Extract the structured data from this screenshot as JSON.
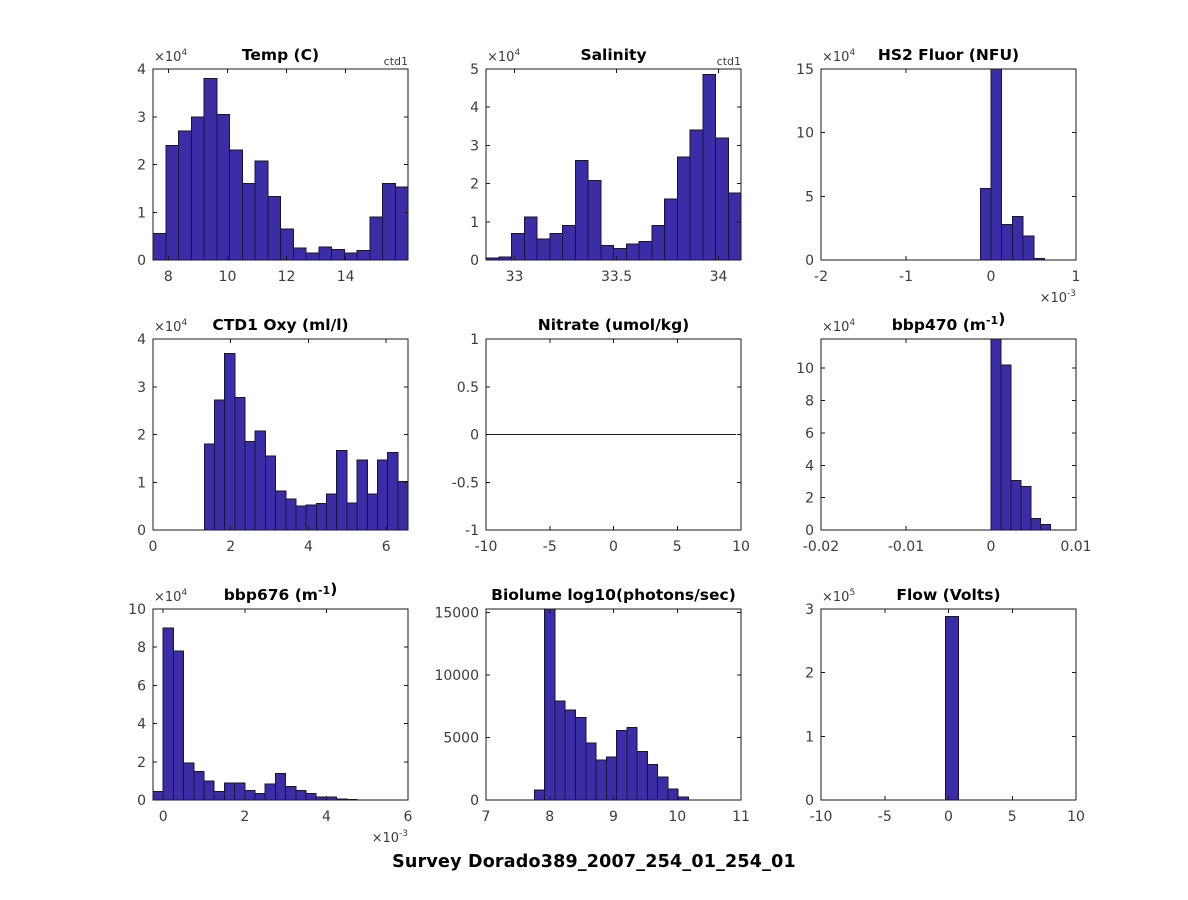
{
  "figure_title": "Survey Dorado389_2007_254_01_254_01",
  "colors": {
    "bar_fill": "#3B2DA5",
    "bar_edge": "#17123F",
    "axis": "#1a1a1a",
    "tick_text": "#3c3c3c",
    "title_text": "#000000",
    "background": "#ffffff"
  },
  "chart_data": [
    {
      "id": "temp",
      "type": "bar",
      "title": "Temp (C)",
      "corner_label": "ctd1",
      "y_exponent": 4,
      "xlim": [
        7.48,
        16.11
      ],
      "ylim": [
        0,
        4
      ],
      "xticks": [
        8,
        10,
        12,
        14
      ],
      "xtick_labels": [
        "8",
        "10",
        "12",
        "14"
      ],
      "yticks": [
        0,
        1,
        2,
        3,
        4
      ],
      "ytick_labels": [
        "0",
        "1",
        "2",
        "3",
        "4"
      ],
      "bin_start": 7.48,
      "bin_width": 0.4315,
      "heights": [
        0.55,
        2.4,
        2.7,
        3.0,
        3.8,
        3.05,
        2.3,
        1.6,
        2.07,
        1.33,
        0.65,
        0.25,
        0.15,
        0.27,
        0.22,
        0.15,
        0.2,
        0.9,
        1.6,
        1.53
      ],
      "y_units": "counts x10^4"
    },
    {
      "id": "salinity",
      "type": "bar",
      "title": "Salinity",
      "corner_label": "ctd1",
      "y_exponent": 4,
      "xlim": [
        32.86,
        34.11
      ],
      "ylim": [
        0,
        5
      ],
      "xticks": [
        33,
        33.5,
        34
      ],
      "xtick_labels": [
        "33",
        "33.5",
        "34"
      ],
      "yticks": [
        0,
        1,
        2,
        3,
        4,
        5
      ],
      "ytick_labels": [
        "0",
        "1",
        "2",
        "3",
        "4",
        "5"
      ],
      "bin_start": 32.86,
      "bin_width": 0.0625,
      "heights": [
        0.05,
        0.08,
        0.7,
        1.13,
        0.55,
        0.7,
        0.9,
        2.6,
        2.08,
        0.38,
        0.3,
        0.42,
        0.48,
        0.9,
        1.6,
        2.7,
        3.4,
        4.85,
        3.2,
        1.75
      ],
      "y_units": "counts x10^4"
    },
    {
      "id": "hs2-fluor",
      "type": "bar",
      "title": "HS2 Fluor (NFU)",
      "y_exponent": 4,
      "x_exponent": -3,
      "xlim": [
        -2,
        1
      ],
      "ylim": [
        0,
        15
      ],
      "xticks": [
        -2,
        -1,
        0,
        1
      ],
      "xtick_labels": [
        "-2",
        "-1",
        "0",
        "1"
      ],
      "yticks": [
        0,
        5,
        10,
        15
      ],
      "ytick_labels": [
        "0",
        "5",
        "10",
        "15"
      ],
      "bin_start": -0.126,
      "bin_width": 0.126,
      "heights": [
        5.6,
        15,
        2.8,
        3.4,
        1.9,
        0.12
      ],
      "y_units": "counts x10^4",
      "x_units": "NFU x10^-3"
    },
    {
      "id": "ctd1-oxy",
      "type": "bar",
      "title": "CTD1 Oxy (ml/l)",
      "y_exponent": 4,
      "xlim": [
        0,
        6.56
      ],
      "ylim": [
        0,
        4
      ],
      "xticks": [
        0,
        2,
        4,
        6
      ],
      "xtick_labels": [
        "0",
        "2",
        "4",
        "6"
      ],
      "yticks": [
        0,
        1,
        2,
        3,
        4
      ],
      "ytick_labels": [
        "0",
        "1",
        "2",
        "3",
        "4"
      ],
      "bin_start": 1.32,
      "bin_width": 0.262,
      "heights": [
        1.8,
        2.72,
        3.7,
        2.77,
        1.85,
        2.07,
        1.55,
        0.82,
        0.65,
        0.5,
        0.52,
        0.55,
        0.75,
        1.67,
        0.57,
        1.47,
        0.75,
        1.47,
        1.62,
        1.02
      ],
      "y_units": "counts x10^4"
    },
    {
      "id": "nitrate",
      "type": "line",
      "title": "Nitrate (umol/kg)",
      "xlim": [
        -10,
        10
      ],
      "ylim": [
        -1,
        1
      ],
      "xticks": [
        -10,
        -5,
        0,
        5,
        10
      ],
      "xtick_labels": [
        "-10",
        "-5",
        "0",
        "5",
        "10"
      ],
      "yticks": [
        -1,
        -0.5,
        0,
        0.5,
        1
      ],
      "ytick_labels": [
        "-1",
        "-0.5",
        "0",
        "0.5",
        "1"
      ],
      "line_points": [
        [
          -10,
          0
        ],
        [
          9.6,
          0
        ]
      ]
    },
    {
      "id": "bbp470",
      "type": "bar",
      "title": "bbp470 (m⁻¹)",
      "title_parts": [
        {
          "t": "bbp470 (m"
        },
        {
          "t": "-1",
          "sup": true
        },
        {
          "t": ")"
        }
      ],
      "y_exponent": 4,
      "xlim": [
        -0.02,
        0.01
      ],
      "ylim": [
        0,
        11.8
      ],
      "xticks": [
        -0.02,
        -0.01,
        0,
        0.01
      ],
      "xtick_labels": [
        "-0.02",
        "-0.01",
        "0",
        "0.01"
      ],
      "yticks": [
        0,
        2,
        4,
        6,
        8,
        10
      ],
      "ytick_labels": [
        "0",
        "2",
        "4",
        "6",
        "8",
        "10"
      ],
      "bin_start": 0,
      "bin_width": 0.00117,
      "heights": [
        11.8,
        10.2,
        3.05,
        2.7,
        0.7,
        0.35
      ],
      "y_units": "counts x10^4"
    },
    {
      "id": "bbp676",
      "type": "bar",
      "title": "bbp676 (m⁻¹)",
      "title_parts": [
        {
          "t": "bbp676 (m"
        },
        {
          "t": "-1",
          "sup": true
        },
        {
          "t": ")"
        }
      ],
      "y_exponent": 4,
      "x_exponent": -3,
      "xlim": [
        -0.25,
        6
      ],
      "ylim": [
        0,
        10
      ],
      "xticks": [
        0,
        2,
        4,
        6
      ],
      "xtick_labels": [
        "0",
        "2",
        "4",
        "6"
      ],
      "yticks": [
        0,
        2,
        4,
        6,
        8,
        10
      ],
      "ytick_labels": [
        "0",
        "2",
        "4",
        "6",
        "8",
        "10"
      ],
      "bin_start": -0.25,
      "bin_width": 0.25,
      "heights": [
        0.45,
        9.0,
        7.8,
        1.95,
        1.5,
        1.0,
        0.45,
        0.9,
        0.9,
        0.5,
        0.35,
        0.85,
        1.4,
        0.7,
        0.5,
        0.35,
        0.15,
        0.15,
        0.05,
        0.03
      ],
      "y_units": "counts x10^4",
      "x_units": "m^-1 x10^-3"
    },
    {
      "id": "biolume",
      "type": "bar",
      "title": "Biolume log10(photons/sec)",
      "xlim": [
        7,
        11
      ],
      "ylim": [
        0,
        15300
      ],
      "xticks": [
        7,
        8,
        9,
        10,
        11
      ],
      "xtick_labels": [
        "7",
        "8",
        "9",
        "10",
        "11"
      ],
      "yticks": [
        0,
        5000,
        10000,
        15000
      ],
      "ytick_labels": [
        "0",
        "5000",
        "10000",
        "15000"
      ],
      "bin_start": 7.76,
      "bin_width": 0.161,
      "heights": [
        800,
        15300,
        7950,
        7200,
        6600,
        4550,
        3200,
        3450,
        5550,
        5800,
        3900,
        2850,
        1850,
        900,
        250
      ],
      "y_units": "counts"
    },
    {
      "id": "flow",
      "type": "bar",
      "title": "Flow (Volts)",
      "y_exponent": 5,
      "xlim": [
        -10,
        10
      ],
      "ylim": [
        0,
        3
      ],
      "xticks": [
        -10,
        -5,
        0,
        5,
        10
      ],
      "xtick_labels": [
        "-10",
        "-5",
        "0",
        "5",
        "10"
      ],
      "yticks": [
        0,
        1,
        2,
        3
      ],
      "ytick_labels": [
        "0",
        "1",
        "2",
        "3"
      ],
      "bin_start": -0.25,
      "bin_width": 1.05,
      "heights": [
        2.88
      ],
      "y_units": "counts x10^5"
    }
  ]
}
